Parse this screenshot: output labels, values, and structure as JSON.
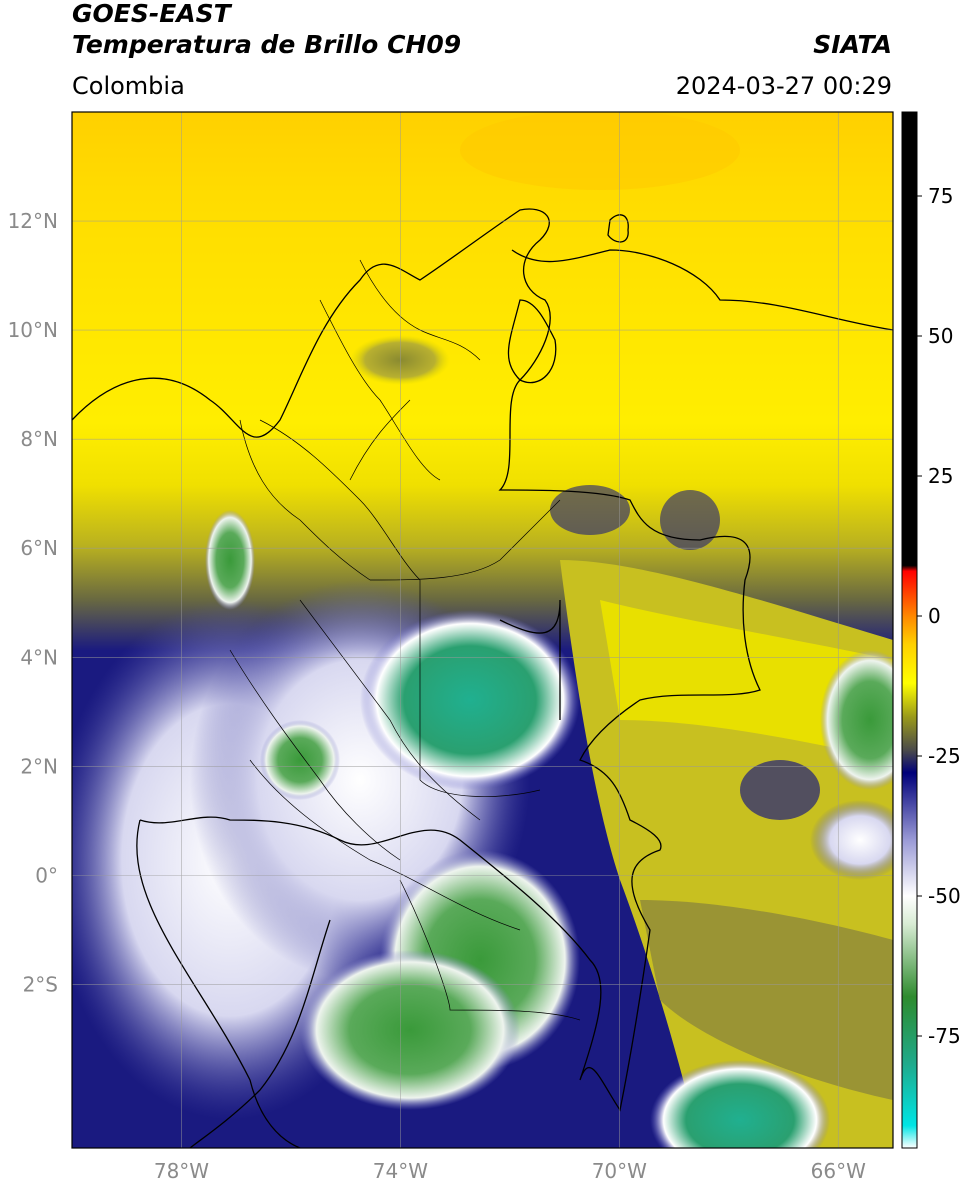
{
  "header": {
    "satellite": "GOES-EAST",
    "product": "Temperatura de Brillo CH09",
    "organization": "SIATA",
    "region": "Colombia",
    "timestamp": "2024-03-27 00:29"
  },
  "map": {
    "lon_range": [
      -80,
      -65
    ],
    "lat_range": [
      -5,
      14
    ],
    "lon_ticks": [
      {
        "value": -78,
        "label": "78°W"
      },
      {
        "value": -74,
        "label": "74°W"
      },
      {
        "value": -70,
        "label": "70°W"
      },
      {
        "value": -66,
        "label": "66°W"
      }
    ],
    "lat_ticks": [
      {
        "value": 12,
        "label": "12°N"
      },
      {
        "value": 10,
        "label": "10°N"
      },
      {
        "value": 8,
        "label": "8°N"
      },
      {
        "value": 6,
        "label": "6°N"
      },
      {
        "value": 4,
        "label": "4°N"
      },
      {
        "value": 2,
        "label": "2°N"
      },
      {
        "value": 0,
        "label": "0°"
      },
      {
        "value": -2,
        "label": "2°S"
      }
    ],
    "gridlines": true
  },
  "colorbar": {
    "range": [
      -95,
      90
    ],
    "ticks": [
      {
        "value": 75,
        "label": "75"
      },
      {
        "value": 50,
        "label": "50"
      },
      {
        "value": 25,
        "label": "25"
      },
      {
        "value": 0,
        "label": "0"
      },
      {
        "value": -25,
        "label": "-25"
      },
      {
        "value": -50,
        "label": "-50"
      },
      {
        "value": -75,
        "label": "-75"
      }
    ],
    "stops": [
      {
        "value": -95,
        "color": "#ffffff"
      },
      {
        "value": -91,
        "color": "#00e5e5"
      },
      {
        "value": -80,
        "color": "#1faa8c"
      },
      {
        "value": -68,
        "color": "#2e8b2e"
      },
      {
        "value": -55,
        "color": "#d8ecd4"
      },
      {
        "value": -50,
        "color": "#ffffff"
      },
      {
        "value": -40,
        "color": "#9a9ad6"
      },
      {
        "value": -28,
        "color": "#00007a"
      },
      {
        "value": -24,
        "color": "#4a4a4a"
      },
      {
        "value": -18,
        "color": "#9a9a1a"
      },
      {
        "value": -12,
        "color": "#ffff00"
      },
      {
        "value": -5,
        "color": "#ffd000"
      },
      {
        "value": 0,
        "color": "#ff8800"
      },
      {
        "value": 8,
        "color": "#ff0000"
      },
      {
        "value": 9,
        "color": "#000000"
      },
      {
        "value": 90,
        "color": "#000000"
      }
    ]
  }
}
